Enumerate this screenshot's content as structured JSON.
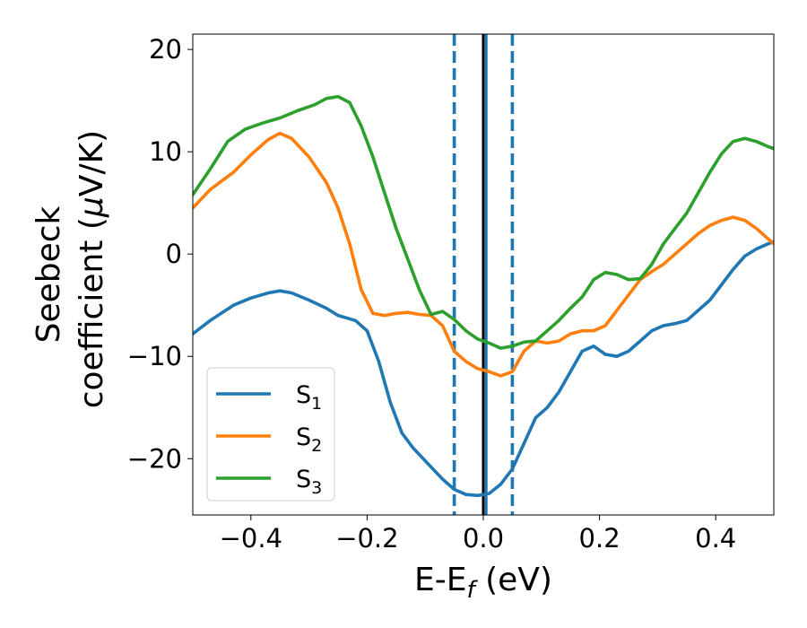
{
  "chart_data": {
    "type": "line",
    "xlabel": {
      "prefix": "E-E",
      "sub": "f",
      "suffix": " (eV)"
    },
    "ylabel": {
      "line1": "Seebeck",
      "line2_text": "coefficient  (",
      "line2_mu": "μ",
      "line2_unit": "V/K)"
    },
    "xlim": [
      -0.5,
      0.5
    ],
    "ylim": [
      -25.5,
      21.5
    ],
    "x_ticks": [
      -0.4,
      -0.2,
      0.0,
      0.2,
      0.4
    ],
    "x_tick_labels": [
      "−0.4",
      "−0.2",
      "0.0",
      "0.2",
      "0.4"
    ],
    "y_ticks": [
      20,
      10,
      0,
      -10,
      -20
    ],
    "y_tick_labels": [
      "20",
      "10",
      "0",
      "−10",
      "−20"
    ],
    "grid": false,
    "legend_position": "lower-left",
    "vlines": [
      {
        "x": -0.05,
        "style": "dashed",
        "color": "#1f77b4"
      },
      {
        "x": 0.0,
        "style": "solid",
        "color": "#000000"
      },
      {
        "x": 0.005,
        "style": "solid",
        "color": "#1f77b4"
      },
      {
        "x": 0.05,
        "style": "dashed",
        "color": "#1f77b4"
      }
    ],
    "series": [
      {
        "name": "S",
        "sub": "1",
        "color": "#1f77b4",
        "points": [
          [
            -0.5,
            -7.8
          ],
          [
            -0.47,
            -6.5
          ],
          [
            -0.43,
            -5.0
          ],
          [
            -0.4,
            -4.3
          ],
          [
            -0.37,
            -3.8
          ],
          [
            -0.35,
            -3.6
          ],
          [
            -0.33,
            -3.8
          ],
          [
            -0.3,
            -4.5
          ],
          [
            -0.27,
            -5.3
          ],
          [
            -0.25,
            -6.0
          ],
          [
            -0.22,
            -6.5
          ],
          [
            -0.2,
            -7.5
          ],
          [
            -0.18,
            -10.5
          ],
          [
            -0.16,
            -14.5
          ],
          [
            -0.14,
            -17.5
          ],
          [
            -0.12,
            -19.0
          ],
          [
            -0.1,
            -20.2
          ],
          [
            -0.07,
            -22.0
          ],
          [
            -0.05,
            -23.0
          ],
          [
            -0.03,
            -23.5
          ],
          [
            -0.01,
            -23.6
          ],
          [
            0.01,
            -23.4
          ],
          [
            0.03,
            -22.5
          ],
          [
            0.05,
            -21.0
          ],
          [
            0.07,
            -18.5
          ],
          [
            0.09,
            -16.0
          ],
          [
            0.11,
            -15.0
          ],
          [
            0.13,
            -13.5
          ],
          [
            0.15,
            -11.5
          ],
          [
            0.17,
            -9.5
          ],
          [
            0.19,
            -9.0
          ],
          [
            0.21,
            -9.8
          ],
          [
            0.23,
            -10.0
          ],
          [
            0.25,
            -9.5
          ],
          [
            0.27,
            -8.5
          ],
          [
            0.29,
            -7.5
          ],
          [
            0.31,
            -7.0
          ],
          [
            0.33,
            -6.8
          ],
          [
            0.35,
            -6.5
          ],
          [
            0.37,
            -5.5
          ],
          [
            0.39,
            -4.5
          ],
          [
            0.41,
            -3.0
          ],
          [
            0.43,
            -1.5
          ],
          [
            0.45,
            -0.2
          ],
          [
            0.47,
            0.5
          ],
          [
            0.49,
            1.0
          ],
          [
            0.5,
            1.2
          ]
        ]
      },
      {
        "name": "S",
        "sub": "2",
        "color": "#ff7f0e",
        "points": [
          [
            -0.5,
            4.5
          ],
          [
            -0.47,
            6.3
          ],
          [
            -0.43,
            8.0
          ],
          [
            -0.4,
            9.7
          ],
          [
            -0.37,
            11.2
          ],
          [
            -0.35,
            11.8
          ],
          [
            -0.33,
            11.3
          ],
          [
            -0.3,
            9.5
          ],
          [
            -0.27,
            7.0
          ],
          [
            -0.25,
            4.5
          ],
          [
            -0.23,
            1.0
          ],
          [
            -0.21,
            -3.5
          ],
          [
            -0.19,
            -5.8
          ],
          [
            -0.17,
            -6.0
          ],
          [
            -0.15,
            -5.8
          ],
          [
            -0.13,
            -5.7
          ],
          [
            -0.11,
            -5.9
          ],
          [
            -0.09,
            -6.0
          ],
          [
            -0.07,
            -7.0
          ],
          [
            -0.05,
            -9.5
          ],
          [
            -0.03,
            -10.5
          ],
          [
            -0.01,
            -11.2
          ],
          [
            0.01,
            -11.5
          ],
          [
            0.03,
            -11.9
          ],
          [
            0.05,
            -11.5
          ],
          [
            0.07,
            -9.5
          ],
          [
            0.09,
            -8.5
          ],
          [
            0.11,
            -8.7
          ],
          [
            0.13,
            -8.5
          ],
          [
            0.15,
            -7.8
          ],
          [
            0.17,
            -7.5
          ],
          [
            0.19,
            -7.5
          ],
          [
            0.21,
            -7.0
          ],
          [
            0.23,
            -5.5
          ],
          [
            0.25,
            -4.0
          ],
          [
            0.27,
            -2.5
          ],
          [
            0.29,
            -1.7
          ],
          [
            0.31,
            -1.0
          ],
          [
            0.33,
            0.0
          ],
          [
            0.35,
            1.0
          ],
          [
            0.37,
            2.0
          ],
          [
            0.39,
            2.8
          ],
          [
            0.41,
            3.3
          ],
          [
            0.43,
            3.6
          ],
          [
            0.45,
            3.3
          ],
          [
            0.47,
            2.5
          ],
          [
            0.49,
            1.5
          ],
          [
            0.5,
            1.0
          ]
        ]
      },
      {
        "name": "S",
        "sub": "3",
        "color": "#2ca02c",
        "points": [
          [
            -0.5,
            5.8
          ],
          [
            -0.47,
            8.3
          ],
          [
            -0.44,
            11.0
          ],
          [
            -0.41,
            12.2
          ],
          [
            -0.38,
            12.8
          ],
          [
            -0.35,
            13.3
          ],
          [
            -0.32,
            14.0
          ],
          [
            -0.29,
            14.6
          ],
          [
            -0.27,
            15.2
          ],
          [
            -0.25,
            15.4
          ],
          [
            -0.23,
            14.8
          ],
          [
            -0.21,
            12.5
          ],
          [
            -0.19,
            9.5
          ],
          [
            -0.17,
            6.0
          ],
          [
            -0.15,
            2.5
          ],
          [
            -0.13,
            -0.5
          ],
          [
            -0.11,
            -3.5
          ],
          [
            -0.09,
            -5.9
          ],
          [
            -0.07,
            -5.6
          ],
          [
            -0.05,
            -6.4
          ],
          [
            -0.03,
            -7.5
          ],
          [
            -0.01,
            -8.3
          ],
          [
            0.01,
            -8.7
          ],
          [
            0.03,
            -9.2
          ],
          [
            0.05,
            -9.0
          ],
          [
            0.07,
            -8.6
          ],
          [
            0.09,
            -8.5
          ],
          [
            0.11,
            -7.5
          ],
          [
            0.13,
            -6.5
          ],
          [
            0.15,
            -5.3
          ],
          [
            0.17,
            -4.2
          ],
          [
            0.19,
            -2.5
          ],
          [
            0.21,
            -1.8
          ],
          [
            0.23,
            -2.0
          ],
          [
            0.25,
            -2.5
          ],
          [
            0.27,
            -2.4
          ],
          [
            0.29,
            -1.0
          ],
          [
            0.31,
            1.0
          ],
          [
            0.33,
            2.5
          ],
          [
            0.35,
            4.0
          ],
          [
            0.37,
            6.0
          ],
          [
            0.39,
            8.0
          ],
          [
            0.41,
            9.8
          ],
          [
            0.43,
            11.0
          ],
          [
            0.45,
            11.3
          ],
          [
            0.47,
            11.0
          ],
          [
            0.49,
            10.5
          ],
          [
            0.5,
            10.3
          ]
        ]
      }
    ]
  }
}
